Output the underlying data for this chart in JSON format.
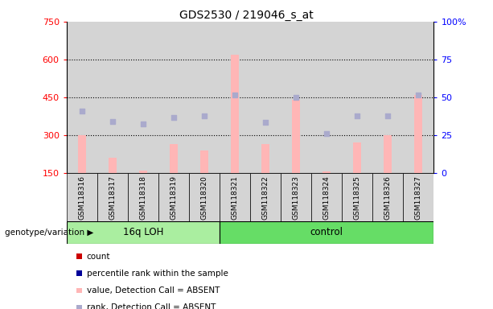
{
  "title": "GDS2530 / 219046_s_at",
  "samples": [
    "GSM118316",
    "GSM118317",
    "GSM118318",
    "GSM118319",
    "GSM118320",
    "GSM118321",
    "GSM118322",
    "GSM118323",
    "GSM118324",
    "GSM118325",
    "GSM118326",
    "GSM118327"
  ],
  "groups": [
    "16q LOH",
    "16q LOH",
    "16q LOH",
    "16q LOH",
    "16q LOH",
    "control",
    "control",
    "control",
    "control",
    "control",
    "control",
    "control"
  ],
  "bar_values": [
    300,
    210,
    160,
    265,
    240,
    620,
    265,
    440,
    155,
    270,
    300,
    460
  ],
  "dot_values": [
    395,
    355,
    345,
    370,
    375,
    460,
    350,
    450,
    305,
    375,
    375,
    460
  ],
  "ylim_left": [
    150,
    750
  ],
  "ylim_right": [
    0,
    100
  ],
  "yticks_left": [
    150,
    300,
    450,
    600,
    750
  ],
  "ytick_labels_left": [
    "150",
    "300",
    "450",
    "600",
    "750"
  ],
  "yticks_right": [
    0,
    25,
    50,
    75,
    100
  ],
  "ytick_labels_right": [
    "0",
    "25",
    "50",
    "75",
    "100%"
  ],
  "bar_color": "#FFB6B6",
  "dot_color": "#AAAACC",
  "col_bg_color": "#D4D4D4",
  "legend_colors": [
    "#CC0000",
    "#000099",
    "#FFB6B6",
    "#AAAACC"
  ],
  "legend_labels": [
    "count",
    "percentile rank within the sample",
    "value, Detection Call = ABSENT",
    "rank, Detection Call = ABSENT"
  ],
  "grid_dotted_values": [
    300,
    450,
    600
  ],
  "genotype_label": "genotype/variation",
  "group_16q_color": "#AAEEA0",
  "group_ctrl_color": "#66DD66"
}
